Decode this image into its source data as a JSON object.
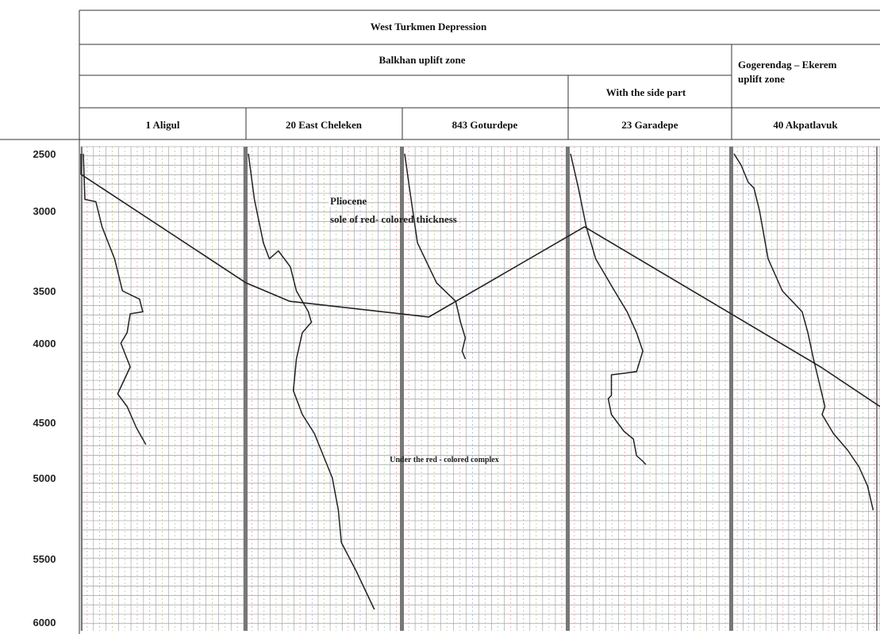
{
  "header": {
    "depression": "West Turkmen Depression",
    "zone_a": "Balkhan uplift zone",
    "side_part": "With the side part",
    "zone_b_line1": "Gogerendag – Ekerem",
    "zone_b_line2": "uplift zone"
  },
  "wells": [
    "1 Aligul",
    "20 East Cheleken",
    "843 Goturdepe",
    "23 Garadepe",
    "40 Akpatlavuk"
  ],
  "depth_ticks": [
    "2500",
    "3000",
    "3500",
    "4000",
    "4500",
    "5000",
    "5500",
    "6000"
  ],
  "annotations": {
    "pliocene_line1": "Pliocene",
    "pliocene_line2": "sole of red- colored thickness",
    "under_complex": "Under the red - colored complex"
  },
  "chart_data": {
    "type": "line",
    "y_axis": {
      "label": "",
      "range": [
        2500,
        6000
      ],
      "inverted": true,
      "ticks": [
        2500,
        3000,
        3500,
        4000,
        4500,
        5000,
        5500,
        6000
      ]
    },
    "x_per_track": "relative track offset 0–1 (no printed scale)",
    "series": [
      {
        "track": 0,
        "points": [
          [
            0,
            2500
          ],
          [
            0.01,
            2900
          ],
          [
            0.08,
            2920
          ],
          [
            0.12,
            3100
          ],
          [
            0.2,
            3300
          ],
          [
            0.25,
            3500
          ],
          [
            0.36,
            3580
          ],
          [
            0.38,
            3700
          ],
          [
            0.3,
            3720
          ],
          [
            0.28,
            3900
          ],
          [
            0.24,
            4000
          ],
          [
            0.3,
            4150
          ],
          [
            0.22,
            4320
          ],
          [
            0.28,
            4400
          ],
          [
            0.34,
            4550
          ],
          [
            0.38,
            4650
          ],
          [
            0.4,
            4700
          ]
        ]
      },
      {
        "track": 1,
        "points": [
          [
            0,
            2500
          ],
          [
            0.04,
            2900
          ],
          [
            0.1,
            3200
          ],
          [
            0.14,
            3300
          ],
          [
            0.2,
            3250
          ],
          [
            0.28,
            3350
          ],
          [
            0.32,
            3500
          ],
          [
            0.4,
            3700
          ],
          [
            0.42,
            3800
          ],
          [
            0.36,
            3900
          ],
          [
            0.32,
            4100
          ],
          [
            0.3,
            4300
          ],
          [
            0.36,
            4450
          ],
          [
            0.44,
            4600
          ],
          [
            0.5,
            4800
          ],
          [
            0.56,
            5000
          ],
          [
            0.6,
            5200
          ],
          [
            0.62,
            5400
          ],
          [
            0.72,
            5600
          ],
          [
            0.8,
            5800
          ],
          [
            0.84,
            5900
          ]
        ]
      },
      {
        "track": 2,
        "points": [
          [
            0,
            2500
          ],
          [
            0.03,
            2800
          ],
          [
            0.08,
            3200
          ],
          [
            0.2,
            3450
          ],
          [
            0.32,
            3600
          ],
          [
            0.35,
            3800
          ],
          [
            0.38,
            3950
          ],
          [
            0.36,
            4050
          ],
          [
            0.38,
            4100
          ]
        ]
      },
      {
        "track": 3,
        "points": [
          [
            0,
            2500
          ],
          [
            0.05,
            2800
          ],
          [
            0.1,
            3100
          ],
          [
            0.16,
            3300
          ],
          [
            0.28,
            3500
          ],
          [
            0.36,
            3700
          ],
          [
            0.42,
            3900
          ],
          [
            0.46,
            4050
          ],
          [
            0.42,
            4180
          ],
          [
            0.26,
            4200
          ],
          [
            0.26,
            4330
          ],
          [
            0.24,
            4350
          ],
          [
            0.26,
            4450
          ],
          [
            0.34,
            4580
          ],
          [
            0.4,
            4650
          ],
          [
            0.42,
            4800
          ],
          [
            0.46,
            4850
          ],
          [
            0.48,
            4880
          ]
        ]
      },
      {
        "track": 4,
        "points": [
          [
            0,
            2500
          ],
          [
            0.05,
            2600
          ],
          [
            0.1,
            2750
          ],
          [
            0.14,
            2800
          ],
          [
            0.18,
            3000
          ],
          [
            0.2,
            3100
          ],
          [
            0.24,
            3300
          ],
          [
            0.34,
            3500
          ],
          [
            0.48,
            3700
          ],
          [
            0.52,
            3900
          ],
          [
            0.56,
            4100
          ],
          [
            0.6,
            4250
          ],
          [
            0.64,
            4400
          ],
          [
            0.62,
            4450
          ],
          [
            0.7,
            4600
          ],
          [
            0.8,
            4750
          ],
          [
            0.88,
            4900
          ],
          [
            0.94,
            5050
          ],
          [
            0.98,
            5200
          ]
        ]
      }
    ],
    "correlation_line": [
      [
        0,
        2500
      ],
      [
        0,
        2680
      ],
      [
        1,
        3450
      ],
      [
        1.28,
        3600
      ],
      [
        2.16,
        3750
      ],
      [
        3.1,
        3100
      ],
      [
        4.6,
        4150
      ],
      [
        5,
        4400
      ]
    ]
  }
}
